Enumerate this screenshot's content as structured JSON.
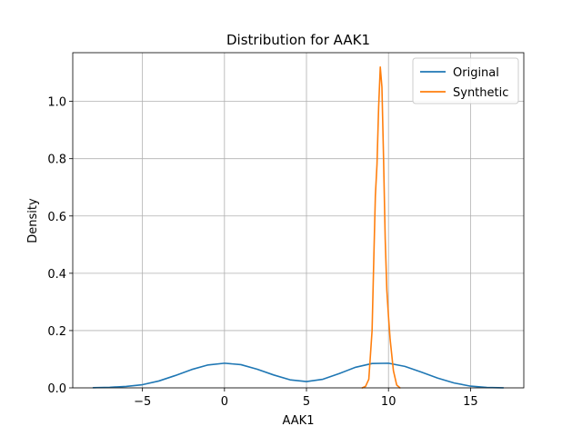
{
  "chart_data": {
    "type": "line",
    "title": "Distribution for AAK1",
    "xlabel": "AAK1",
    "ylabel": "Density",
    "xlim": [
      -9.25,
      18.25
    ],
    "ylim": [
      0,
      1.17
    ],
    "xticks": [
      -5,
      0,
      5,
      10,
      15
    ],
    "xtick_labels": [
      "−5",
      "0",
      "5",
      "10",
      "15"
    ],
    "yticks": [
      0.0,
      0.2,
      0.4,
      0.6,
      0.8,
      1.0
    ],
    "ytick_labels": [
      "0.0",
      "0.2",
      "0.4",
      "0.6",
      "0.8",
      "1.0"
    ],
    "grid": true,
    "legend_position": "top-right",
    "series": [
      {
        "name": "Original",
        "color": "#1f77b4",
        "x": [
          -8,
          -7,
          -6,
          -5,
          -4,
          -3,
          -2,
          -1,
          0,
          1,
          2,
          3,
          4,
          5,
          6,
          7,
          8,
          9,
          10,
          11,
          12,
          13,
          14,
          15,
          16,
          17
        ],
        "y": [
          0.0005,
          0.002,
          0.005,
          0.011,
          0.024,
          0.043,
          0.064,
          0.08,
          0.086,
          0.081,
          0.065,
          0.045,
          0.028,
          0.022,
          0.03,
          0.05,
          0.072,
          0.085,
          0.086,
          0.075,
          0.055,
          0.034,
          0.017,
          0.006,
          0.0015,
          0.0003
        ]
      },
      {
        "name": "Synthetic",
        "color": "#ff7f0e",
        "x": [
          8.4,
          8.6,
          8.8,
          9.0,
          9.1,
          9.2,
          9.3,
          9.4,
          9.5,
          9.6,
          9.7,
          9.8,
          9.9,
          10.0,
          10.1,
          10.3,
          10.5,
          10.7
        ],
        "y": [
          0.0,
          0.005,
          0.03,
          0.2,
          0.44,
          0.67,
          0.78,
          0.98,
          1.12,
          1.05,
          0.8,
          0.52,
          0.34,
          0.25,
          0.17,
          0.06,
          0.01,
          0.0
        ]
      }
    ]
  }
}
